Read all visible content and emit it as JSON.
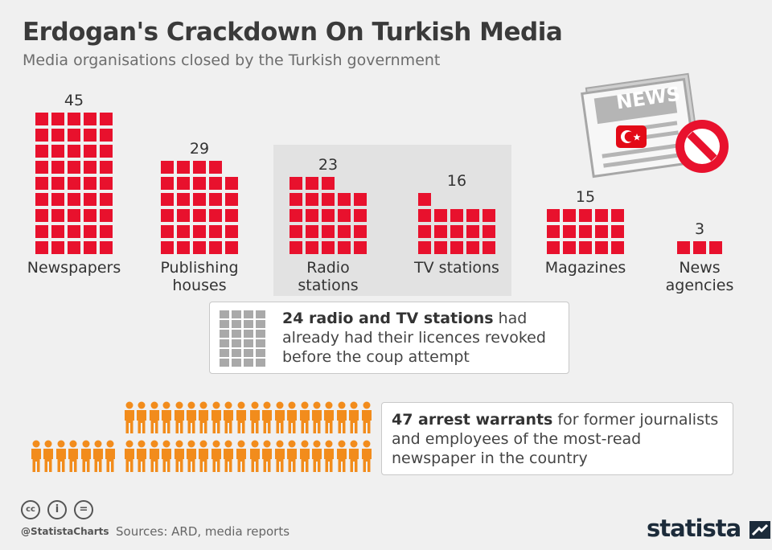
{
  "title": "Erdogan's Crackdown On Turkish Media",
  "subtitle": "Media organisations closed by the Turkish government",
  "chart_data": {
    "type": "bar",
    "unit_icon": "red-square",
    "categories": [
      "Newspapers",
      "Publishing houses",
      "Radio stations",
      "TV stations",
      "Magazines",
      "News agencies"
    ],
    "category_lines": [
      [
        "Newspapers"
      ],
      [
        "Publishing",
        "houses"
      ],
      [
        "Radio",
        "stations"
      ],
      [
        "TV stations"
      ],
      [
        "Magazines"
      ],
      [
        "News",
        "agencies"
      ]
    ],
    "values": [
      45,
      29,
      23,
      16,
      15,
      3
    ],
    "value_labels": [
      "45",
      "29",
      "23",
      "16",
      "15",
      "3"
    ],
    "highlighted": [
      "Radio stations",
      "TV stations"
    ],
    "colors": {
      "bar": "#e8112d",
      "highlight_bg": "#e2e2e2",
      "note_icon": "#a9a9a9",
      "person": "#f28c1c"
    }
  },
  "note_revoked": {
    "count": 24,
    "bold": "24 radio and TV stations",
    "rest": " had already had their licences revoked before the coup attempt"
  },
  "arrests": {
    "count": 47,
    "icon": "person-icon",
    "bold": "47 arrest warrants",
    "rest": " for former journalists and employees of the most-read newspaper in the country"
  },
  "news_icon": {
    "text": "NEWS",
    "icons": [
      "newspaper-icon",
      "turkish-flag-icon",
      "prohibited-icon"
    ]
  },
  "footer": {
    "handle": "@StatistaCharts",
    "sources": "Sources: ARD, media reports",
    "logo": "statista",
    "license_icons": [
      "cc-icon",
      "attribution-icon",
      "no-derivatives-icon"
    ],
    "license_glyphs": [
      "cc",
      "i",
      "="
    ]
  }
}
